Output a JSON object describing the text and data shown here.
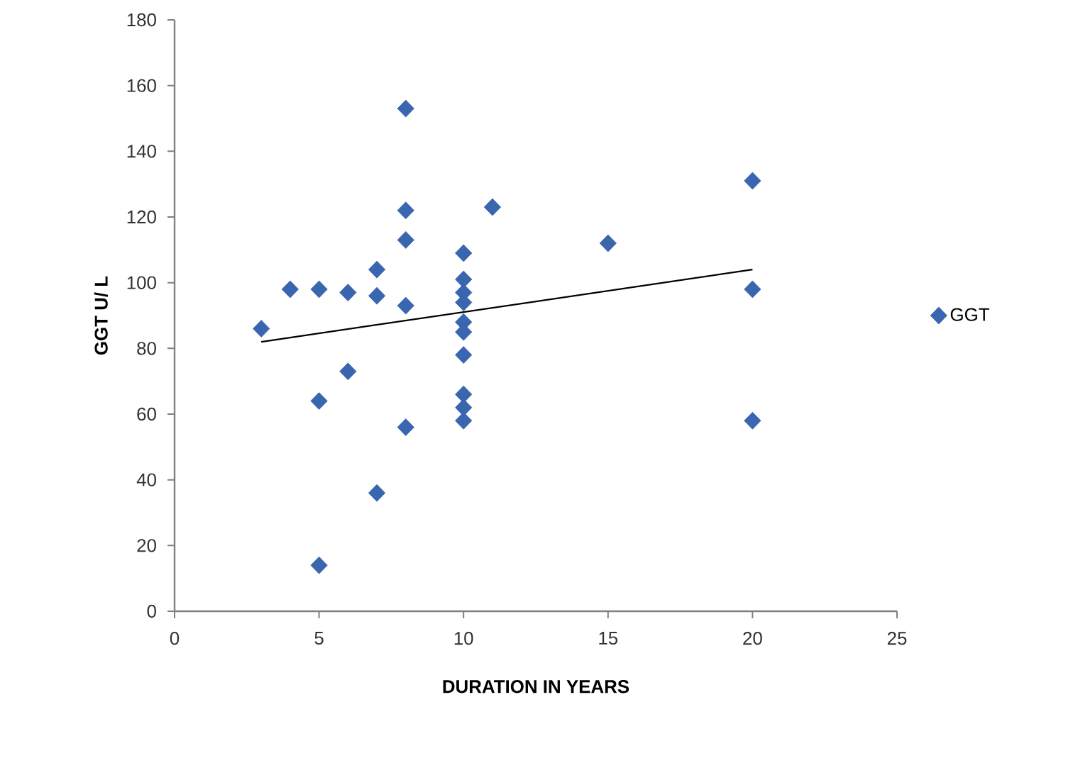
{
  "chart_data": {
    "type": "scatter",
    "xlabel": "DURATION IN YEARS",
    "ylabel": "GGT U/ L",
    "xlim": [
      0,
      25
    ],
    "xticks": [
      0,
      5,
      10,
      15,
      20,
      25
    ],
    "ylim": [
      0,
      180
    ],
    "yticks": [
      0,
      20,
      40,
      60,
      80,
      100,
      120,
      140,
      160,
      180
    ],
    "grid": false,
    "legend": "right",
    "series": [
      {
        "name": "GGT",
        "color": "#3a66b0",
        "marker": "diamond",
        "x": [
          3,
          4,
          5,
          5,
          5,
          6,
          6,
          7,
          7,
          7,
          8,
          8,
          8,
          8,
          8,
          10,
          10,
          10,
          10,
          10,
          10,
          10,
          10,
          10,
          10,
          11,
          15,
          20,
          20,
          20
        ],
        "values": [
          86,
          98,
          98,
          64,
          14,
          97,
          73,
          104,
          96,
          36,
          153,
          122,
          113,
          93,
          56,
          109,
          101,
          97,
          94,
          88,
          85,
          78,
          66,
          62,
          58,
          123,
          112,
          131,
          98,
          58
        ]
      },
      {
        "type": "line",
        "color": "#000000",
        "marker": "none",
        "x": [
          3,
          20
        ],
        "values": [
          82,
          104
        ]
      }
    ]
  }
}
